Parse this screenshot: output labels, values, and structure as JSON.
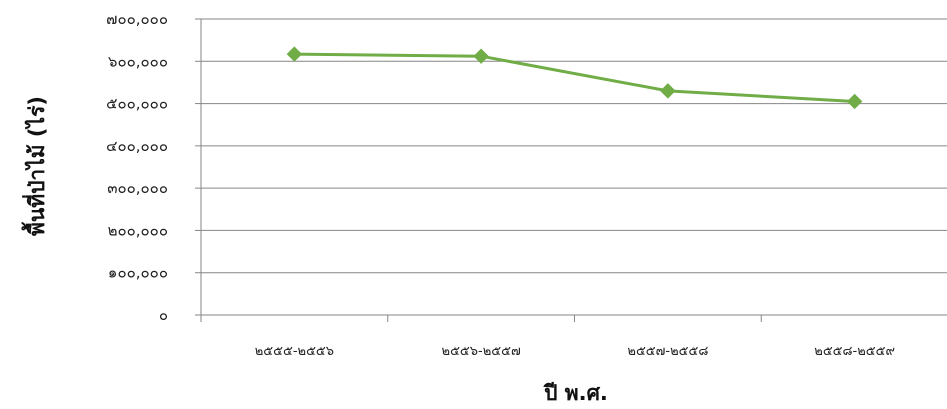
{
  "chart_data": {
    "type": "line",
    "categories": [
      "๒๕๕๕-๒๕๕๖",
      "๒๕๕๖-๒๕๕๗",
      "๒๕๕๗-๒๕๕๘",
      "๒๕๕๘-๒๕๕๙"
    ],
    "series": [
      {
        "values": [
          617000,
          612000,
          530000,
          505000
        ],
        "color": "#70ad47",
        "marker": "diamond"
      }
    ],
    "xlabel": "ปี พ.ศ.",
    "ylabel": "พื้นที่ป่าไม้ (ไร่)",
    "ylim": [
      0,
      700000
    ],
    "yticks": [
      0,
      100000,
      200000,
      300000,
      400000,
      500000,
      600000,
      700000
    ],
    "ytick_labels": [
      "๐",
      "๑๐๐,๐๐๐",
      "๒๐๐,๐๐๐",
      "๓๐๐,๐๐๐",
      "๔๐๐,๐๐๐",
      "๕๐๐,๐๐๐",
      "๖๐๐,๐๐๐",
      "๗๐๐,๐๐๐"
    ],
    "grid": true,
    "legend": "none"
  }
}
